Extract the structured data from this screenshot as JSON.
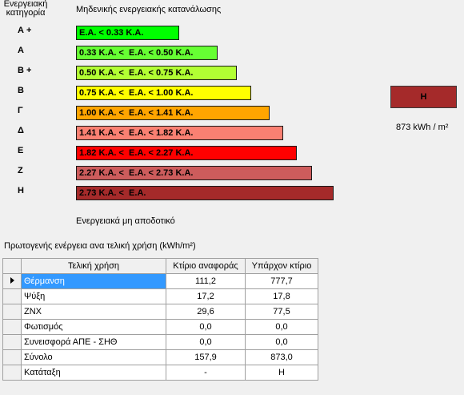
{
  "header": {
    "category_line1": "Ενεργειακή",
    "category_line2": "κατηγορία",
    "top_label": "Μηδενικής ενεργειακής κατανάλωσης",
    "bottom_label": "Ενεργειακά μη αποδοτικό"
  },
  "classes": [
    {
      "label": "Α +",
      "range": "Ε.Α. < 0.33 Κ.Α.",
      "color": "#00ff00"
    },
    {
      "label": "Α",
      "range": "0.33 Κ.Α. <  Ε.Α. < 0.50 Κ.Α.",
      "color": "#66ff33"
    },
    {
      "label": "Β +",
      "range": "0.50 Κ.Α. <  Ε.Α. < 0.75 Κ.Α.",
      "color": "#b2ff33"
    },
    {
      "label": "Β",
      "range": "0.75 Κ.Α. <  Ε.Α. < 1.00 Κ.Α.",
      "color": "#ffff00"
    },
    {
      "label": "Γ",
      "range": "1.00 Κ.Α. <  Ε.Α. < 1.41 Κ.Α.",
      "color": "#ffa500"
    },
    {
      "label": "Δ",
      "range": "1.41 Κ.Α. <  Ε.Α. < 1.82 Κ.Α.",
      "color": "#fa8072"
    },
    {
      "label": "Ε",
      "range": "1.82 Κ.Α. <  Ε.Α. < 2.27 Κ.Α.",
      "color": "#ff0000"
    },
    {
      "label": "Ζ",
      "range": "2.27 Κ.Α. <  Ε.Α. < 2.73 Κ.Α.",
      "color": "#cd5c5c"
    },
    {
      "label": "Η",
      "range": "2.73 Κ.Α. <  Ε.Α.",
      "color": "#a52a2a"
    }
  ],
  "result": {
    "category": "Η",
    "color": "#a52a2a",
    "value": "873 kWh / m²"
  },
  "table": {
    "title": "Πρωτογενής ενέργεια ανα τελική χρήση (kWh/m²)",
    "columns": [
      "Τελική χρήση",
      "Κτίριο αναφοράς",
      "Υπάρχον κτίριο"
    ],
    "rows": [
      {
        "name": "Θέρμανση",
        "ref": "111,2",
        "existing": "777,7"
      },
      {
        "name": "Ψύξη",
        "ref": "17,2",
        "existing": "17,8"
      },
      {
        "name": "ΖΝΧ",
        "ref": "29,6",
        "existing": "77,5"
      },
      {
        "name": "Φωτισμός",
        "ref": "0,0",
        "existing": "0,0"
      },
      {
        "name": "Συνεισφορά ΑΠΕ - ΣΗΘ",
        "ref": "0,0",
        "existing": "0,0"
      },
      {
        "name": "Σύνολο",
        "ref": "157,9",
        "existing": "873,0"
      },
      {
        "name": "Κατάταξη",
        "ref": "-",
        "existing": "Η"
      }
    ]
  }
}
